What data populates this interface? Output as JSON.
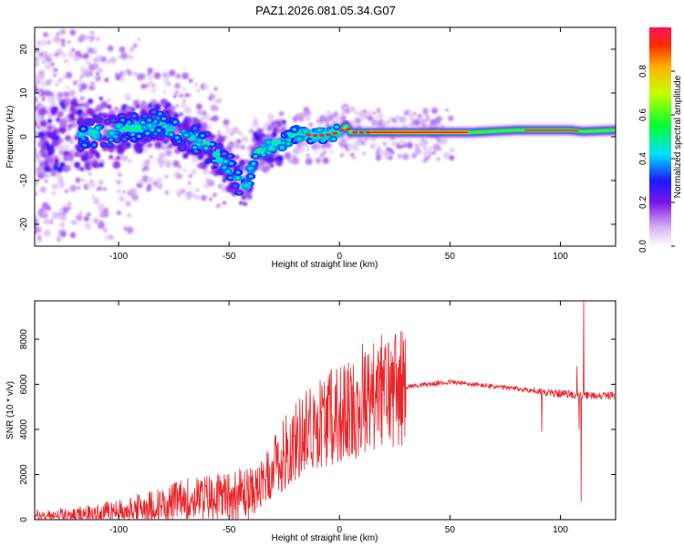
{
  "figure": {
    "title": "PAZ1.2026.081.05.34.G07"
  },
  "chart_data": [
    {
      "type": "heatmap",
      "name": "spectrogram",
      "xlabel": "Height of straight line (km)",
      "ylabel": "Frequency (Hz)",
      "xlim": [
        -138,
        125
      ],
      "ylim": [
        -25,
        25
      ],
      "xticks": [
        -100,
        -50,
        0,
        50,
        100
      ],
      "yticks": [
        -20,
        -10,
        0,
        10,
        20
      ],
      "ridge": {
        "x": [
          -115,
          -100,
          -90,
          -80,
          -70,
          -60,
          -50,
          -42,
          -38,
          -34,
          -30,
          -25,
          -20,
          -15,
          -10,
          -5,
          0,
          3,
          5,
          10,
          15,
          20,
          30,
          50,
          60,
          80,
          90,
          105,
          110,
          125
        ],
        "y": [
          0.5,
          1.5,
          2,
          3,
          0,
          -2,
          -7,
          -12,
          -3.5,
          -3,
          -2,
          -1,
          0.5,
          0.5,
          0.2,
          0.5,
          1,
          2.5,
          1,
          1,
          1,
          1,
          1,
          1,
          1,
          1.5,
          1.5,
          1.5,
          1.2,
          1.5
        ]
      },
      "colorbar": {
        "label": "Normalized spectral amplitude",
        "ticks": [
          "0.0",
          "0.2",
          "0.4",
          "0.6",
          "0.8"
        ],
        "range": [
          0,
          1
        ]
      }
    },
    {
      "type": "line",
      "name": "snr",
      "xlabel": "Height of straight line (km)",
      "ylabel": "SNR (10 * v/v)",
      "xlim": [
        -138,
        125
      ],
      "ylim": [
        0,
        9700
      ],
      "xticks": [
        -100,
        -50,
        0,
        50,
        100
      ],
      "yticks": [
        0,
        2000,
        4000,
        6000,
        8000
      ],
      "color": "#e8262b",
      "x": [
        -138,
        -120,
        -100,
        -80,
        -70,
        -60,
        -50,
        -40,
        -35,
        -30,
        -25,
        -20,
        -15,
        -10,
        -5,
        0,
        5,
        10,
        15,
        20,
        25,
        30,
        40,
        50,
        60,
        70,
        80,
        90,
        95,
        100,
        105,
        108,
        110,
        115,
        125
      ],
      "y": [
        150,
        200,
        400,
        700,
        900,
        1000,
        1100,
        1200,
        1500,
        2200,
        3000,
        3400,
        4000,
        4300,
        4500,
        4700,
        4800,
        5200,
        5500,
        5700,
        5800,
        5900,
        6000,
        6100,
        6000,
        5900,
        5800,
        5700,
        5600,
        5600,
        5550,
        5500,
        5500,
        5500,
        5500
      ],
      "spikes": [
        {
          "x": 10.5,
          "y": 7800
        },
        {
          "x": 11.5,
          "y": 3000
        },
        {
          "x": 91.5,
          "y": 3900
        },
        {
          "x": 107.5,
          "y": 6800
        },
        {
          "x": 108.5,
          "y": 4000
        },
        {
          "x": 109.5,
          "y": 800
        },
        {
          "x": 110.5,
          "y": 9700
        }
      ]
    }
  ]
}
